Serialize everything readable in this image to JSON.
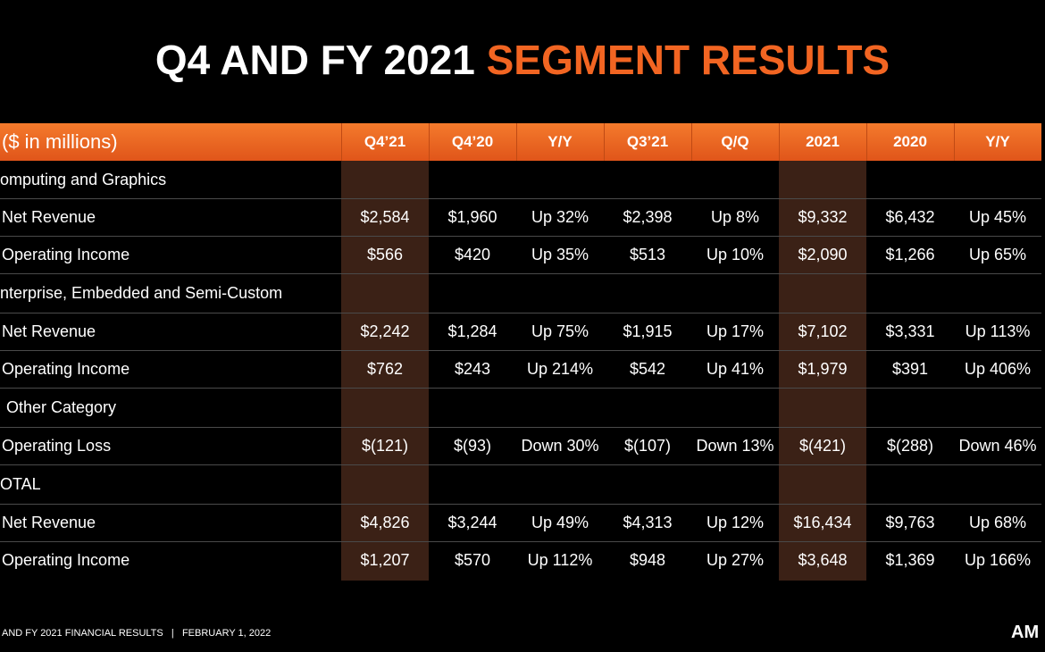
{
  "title": {
    "part1": "Q4 AND FY 2021",
    "part2": "SEGMENT RESULTS"
  },
  "table": {
    "header": [
      "($ in millions)",
      "Q4’21",
      "Q4’20",
      "Y/Y",
      "Q3’21",
      "Q/Q",
      "2021",
      "2020",
      "Y/Y"
    ],
    "rows": [
      [
        "omputing and Graphics"
      ],
      [
        "Net Revenue",
        "$2,584",
        "$1,960",
        "Up 32%",
        "$2,398",
        "Up 8%",
        "$9,332",
        "$6,432",
        "Up 45%"
      ],
      [
        "Operating Income",
        "$566",
        "$420",
        "Up 35%",
        "$513",
        "Up 10%",
        "$2,090",
        "$1,266",
        "Up 65%"
      ],
      [
        "nterprise, Embedded and Semi-Custom"
      ],
      [
        "Net Revenue",
        "$2,242",
        "$1,284",
        "Up 75%",
        "$1,915",
        "Up 17%",
        "$7,102",
        "$3,331",
        "Up 113%"
      ],
      [
        "Operating Income",
        "$762",
        "$243",
        "Up 214%",
        "$542",
        "Up 41%",
        "$1,979",
        "$391",
        "Up 406%"
      ],
      [
        "Other Category"
      ],
      [
        "Operating Loss",
        "$(121)",
        "$(93)",
        "Down 30%",
        "$(107)",
        "Down 13%",
        "$(421)",
        "$(288)",
        "Down 46%"
      ],
      [
        "OTAL"
      ],
      [
        "Net Revenue",
        "$4,826",
        "$3,244",
        "Up 49%",
        "$4,313",
        "Up 12%",
        "$16,434",
        "$9,763",
        "Up 68%"
      ],
      [
        "Operating Income",
        "$1,207",
        "$570",
        "Up 112%",
        "$948",
        "Up 27%",
        "$3,648",
        "$1,369",
        "Up 166%"
      ]
    ]
  },
  "footer": {
    "left": "AND FY 2021 FINANCIAL RESULTS",
    "separator": "|",
    "date": "FEBRUARY 1, 2022",
    "logo": "AM"
  }
}
